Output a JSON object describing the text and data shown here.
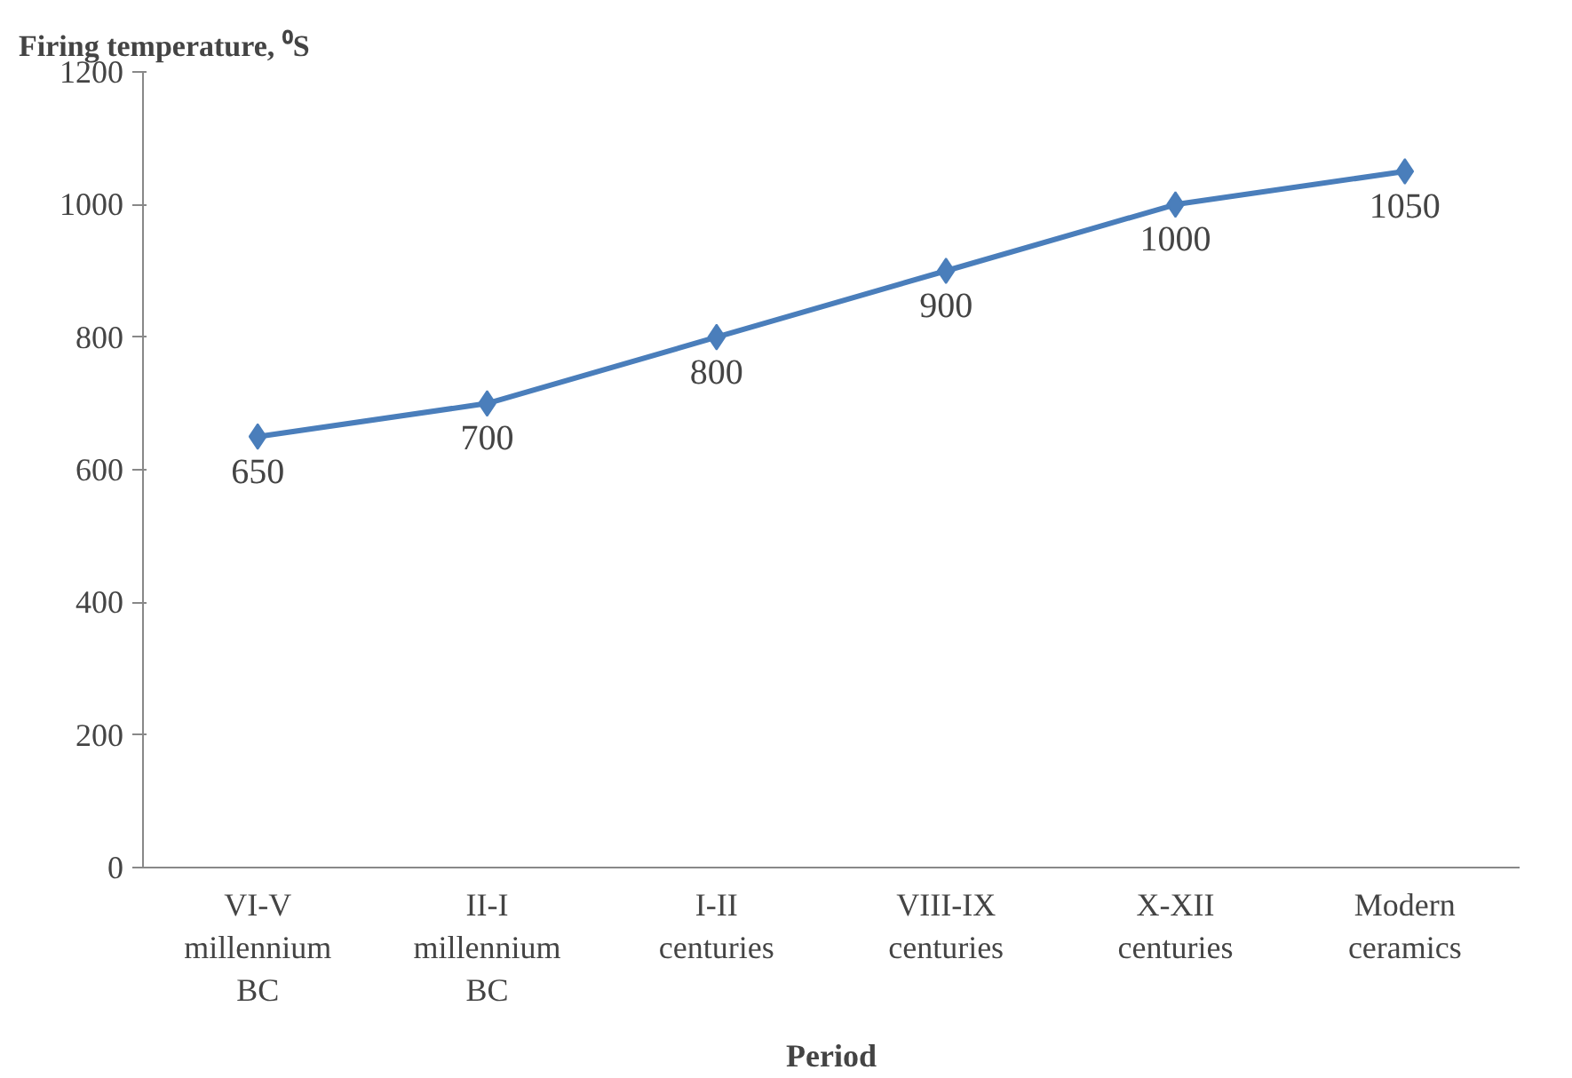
{
  "chart_data": {
    "type": "line",
    "ylabel": "Firing temperature, ⁰S",
    "xlabel": "Period",
    "categories": [
      "VI-V millennium BC",
      "II-I millennium BC",
      "I-II centuries",
      "VIII-IX centuries",
      "X-XII centuries",
      "Modern ceramics"
    ],
    "series": [
      {
        "color": "#4a7ebb",
        "values": [
          650,
          700,
          800,
          900,
          1000,
          1050
        ]
      }
    ],
    "ylim": [
      0,
      1200
    ],
    "yticks": [
      0,
      200,
      400,
      600,
      800,
      1000,
      1200
    ],
    "data_labels": true,
    "marker": "diamond",
    "line_style": "solid"
  }
}
